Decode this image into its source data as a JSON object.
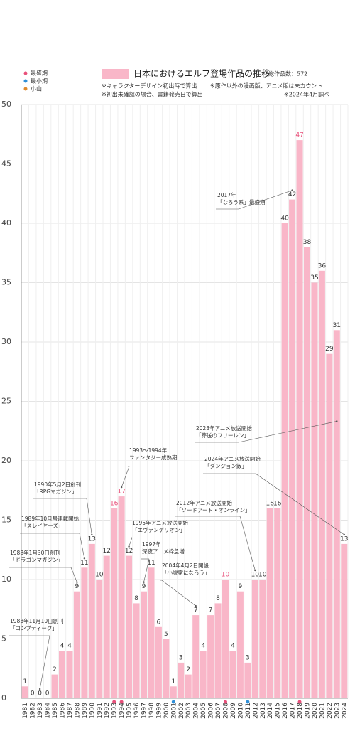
{
  "chart_data": {
    "type": "bar",
    "title": "日本におけるエルフ登場作品の推移",
    "total": "総作品数：572",
    "notes": [
      "※キャラクターデザイン初出時で算出",
      "※原作以外の漫画版、アニメ版は未カウント",
      "※初出未確認の場合、書籍発売日で算出",
      "※2024年4月調べ"
    ],
    "legend": [
      {
        "name": "最盛期",
        "color": "#e8507a"
      },
      {
        "name": "最小期",
        "color": "#2f8fd8"
      },
      {
        "name": "小山",
        "color": "#e08a2c"
      }
    ],
    "categories": [
      "1981",
      "1982",
      "1983",
      "1984",
      "1985",
      "1986",
      "1987",
      "1988",
      "1989",
      "1990",
      "1991",
      "1992",
      "1993",
      "1994",
      "1995",
      "1996",
      "1997",
      "1998",
      "1999",
      "2000",
      "2001",
      "2002",
      "2003",
      "2004",
      "2005",
      "2006",
      "2007",
      "2008",
      "2009",
      "2010",
      "2011",
      "2012",
      "2013",
      "2014",
      "2015",
      "2016",
      "2017",
      "2018",
      "2019",
      "2020",
      "2021",
      "2022",
      "2023",
      "2024"
    ],
    "values": [
      1,
      0,
      0,
      0,
      2,
      4,
      4,
      9,
      11,
      13,
      10,
      12,
      16,
      17,
      12,
      8,
      9,
      11,
      6,
      5,
      1,
      3,
      2,
      7,
      4,
      7,
      8,
      10,
      4,
      9,
      3,
      10,
      10,
      16,
      16,
      40,
      42,
      47,
      38,
      35,
      36,
      29,
      31,
      13
    ],
    "color": "#f9b6c8",
    "markers": [
      {
        "category": "1993",
        "legend": 0
      },
      {
        "category": "1994",
        "legend": 0
      },
      {
        "category": "2001",
        "legend": 1
      },
      {
        "category": "2008",
        "legend": 0
      },
      {
        "category": "2011",
        "legend": 1
      },
      {
        "category": "2018",
        "legend": 0
      }
    ],
    "ylim": [
      0,
      50
    ],
    "yticks": [
      0,
      5,
      10,
      15,
      20,
      25,
      30,
      35,
      40,
      45,
      50
    ],
    "grid": true,
    "annotations": [
      {
        "lines": [
          "1983年11月10日創刊",
          "「コンプティーク」"
        ],
        "category": "1983"
      },
      {
        "lines": [
          "1988年1月30日創刊",
          "「ドラゴンマガジン」"
        ],
        "category": "1988"
      },
      {
        "lines": [
          "1989年10月号連載開始",
          "「スレイヤーズ」"
        ],
        "category": "1989"
      },
      {
        "lines": [
          "1990年5月2日創刊",
          "「RPGマガジン」"
        ],
        "category": "1990"
      },
      {
        "lines": [
          "1993〜1994年",
          "ファンタジー成熟期"
        ],
        "category": "1994"
      },
      {
        "lines": [
          "1995年アニメ放送開始",
          "「エヴァンゲリオン」"
        ],
        "category": "1995"
      },
      {
        "lines": [
          "1997年",
          "深夜アニメ枠急増"
        ],
        "category": "1997"
      },
      {
        "lines": [
          "2004年4月2日開設",
          "「小説家になろう」"
        ],
        "category": "2004"
      },
      {
        "lines": [
          "2012年アニメ放送開始",
          "「ソードアート・オンライン」"
        ],
        "category": "2012"
      },
      {
        "lines": [
          "2017年",
          "「なろう系」最盛期"
        ],
        "category": "2017"
      },
      {
        "lines": [
          "2023年アニメ放送開始",
          "「葬送のフリーレン」"
        ],
        "category": "2023"
      },
      {
        "lines": [
          "2024年アニメ放送開始",
          "「ダンジョン飯」"
        ],
        "category": "2024"
      }
    ]
  }
}
